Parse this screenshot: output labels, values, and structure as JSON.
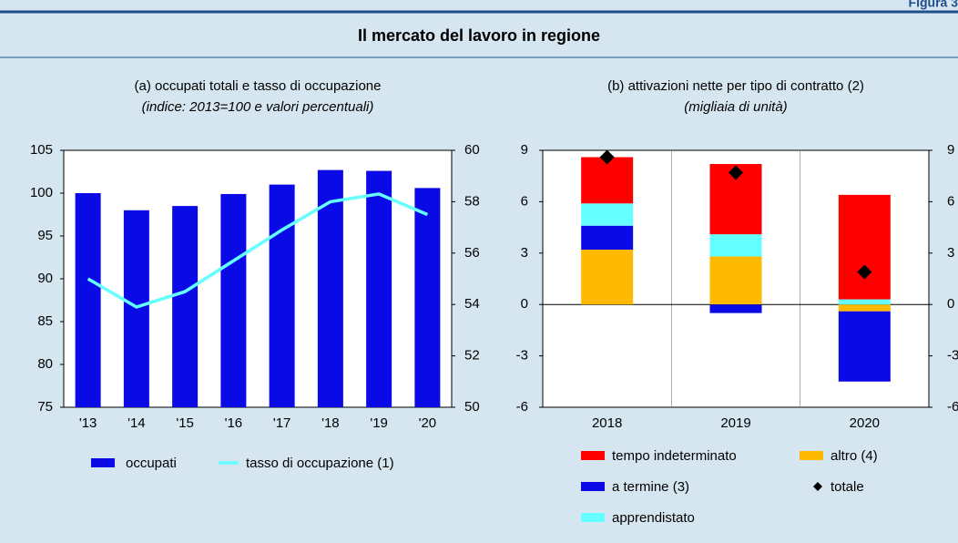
{
  "header": {
    "figure": "Figura 3",
    "title": "Il mercato del lavoro in regione"
  },
  "chart_data": [
    {
      "type": "bar_line",
      "title": "(a) occupati totali e tasso di occupazione",
      "subtitle": "(indice: 2013=100 e valori percentuali)",
      "categories": [
        "'13",
        "'14",
        "'15",
        "'16",
        "'17",
        "'18",
        "'19",
        "'20"
      ],
      "series": [
        {
          "name": "occupati",
          "type": "bar",
          "color": "#0a0ae6",
          "values": [
            100,
            98,
            98.5,
            99.9,
            101,
            102.7,
            102.6,
            100.6
          ]
        },
        {
          "name": "tasso di occupazione (1)",
          "type": "line",
          "axis": "y2",
          "color": "#66ffff",
          "values": [
            55.0,
            53.9,
            54.5,
            55.7,
            56.9,
            58.0,
            58.3,
            57.5
          ]
        }
      ],
      "ylim": [
        75,
        105
      ],
      "yticks": [
        75,
        80,
        85,
        90,
        95,
        100,
        105
      ],
      "y2lim": [
        50,
        60
      ],
      "y2ticks": [
        50,
        52,
        54,
        56,
        58,
        60
      ],
      "grid": false
    },
    {
      "type": "stacked_bar",
      "title": "(b) attivazioni nette per tipo di contratto (2)",
      "subtitle": "(migliaia di unità)",
      "categories": [
        "2018",
        "2019",
        "2020"
      ],
      "series": [
        {
          "name": "altro (4)",
          "color": "#ffb900",
          "values": [
            3.2,
            2.8,
            -0.4
          ]
        },
        {
          "name": "a termine (3)",
          "color": "#0a0ae6",
          "values": [
            1.4,
            -0.5,
            -4.1
          ]
        },
        {
          "name": "apprendistato",
          "color": "#66ffff",
          "values": [
            1.3,
            1.3,
            0.3
          ]
        },
        {
          "name": "tempo indeterminato",
          "color": "#ff0000",
          "values": [
            2.7,
            4.1,
            6.1
          ]
        }
      ],
      "markers": {
        "name": "totale",
        "color": "#000000",
        "values": [
          8.6,
          7.7,
          1.9
        ]
      },
      "ylim": [
        -6,
        9
      ],
      "yticks": [
        -6,
        -3,
        0,
        3,
        6,
        9
      ],
      "y2lim": [
        -6,
        9
      ],
      "y2ticks": [
        -6,
        -3,
        0,
        3,
        6,
        9
      ],
      "grid": false
    }
  ]
}
